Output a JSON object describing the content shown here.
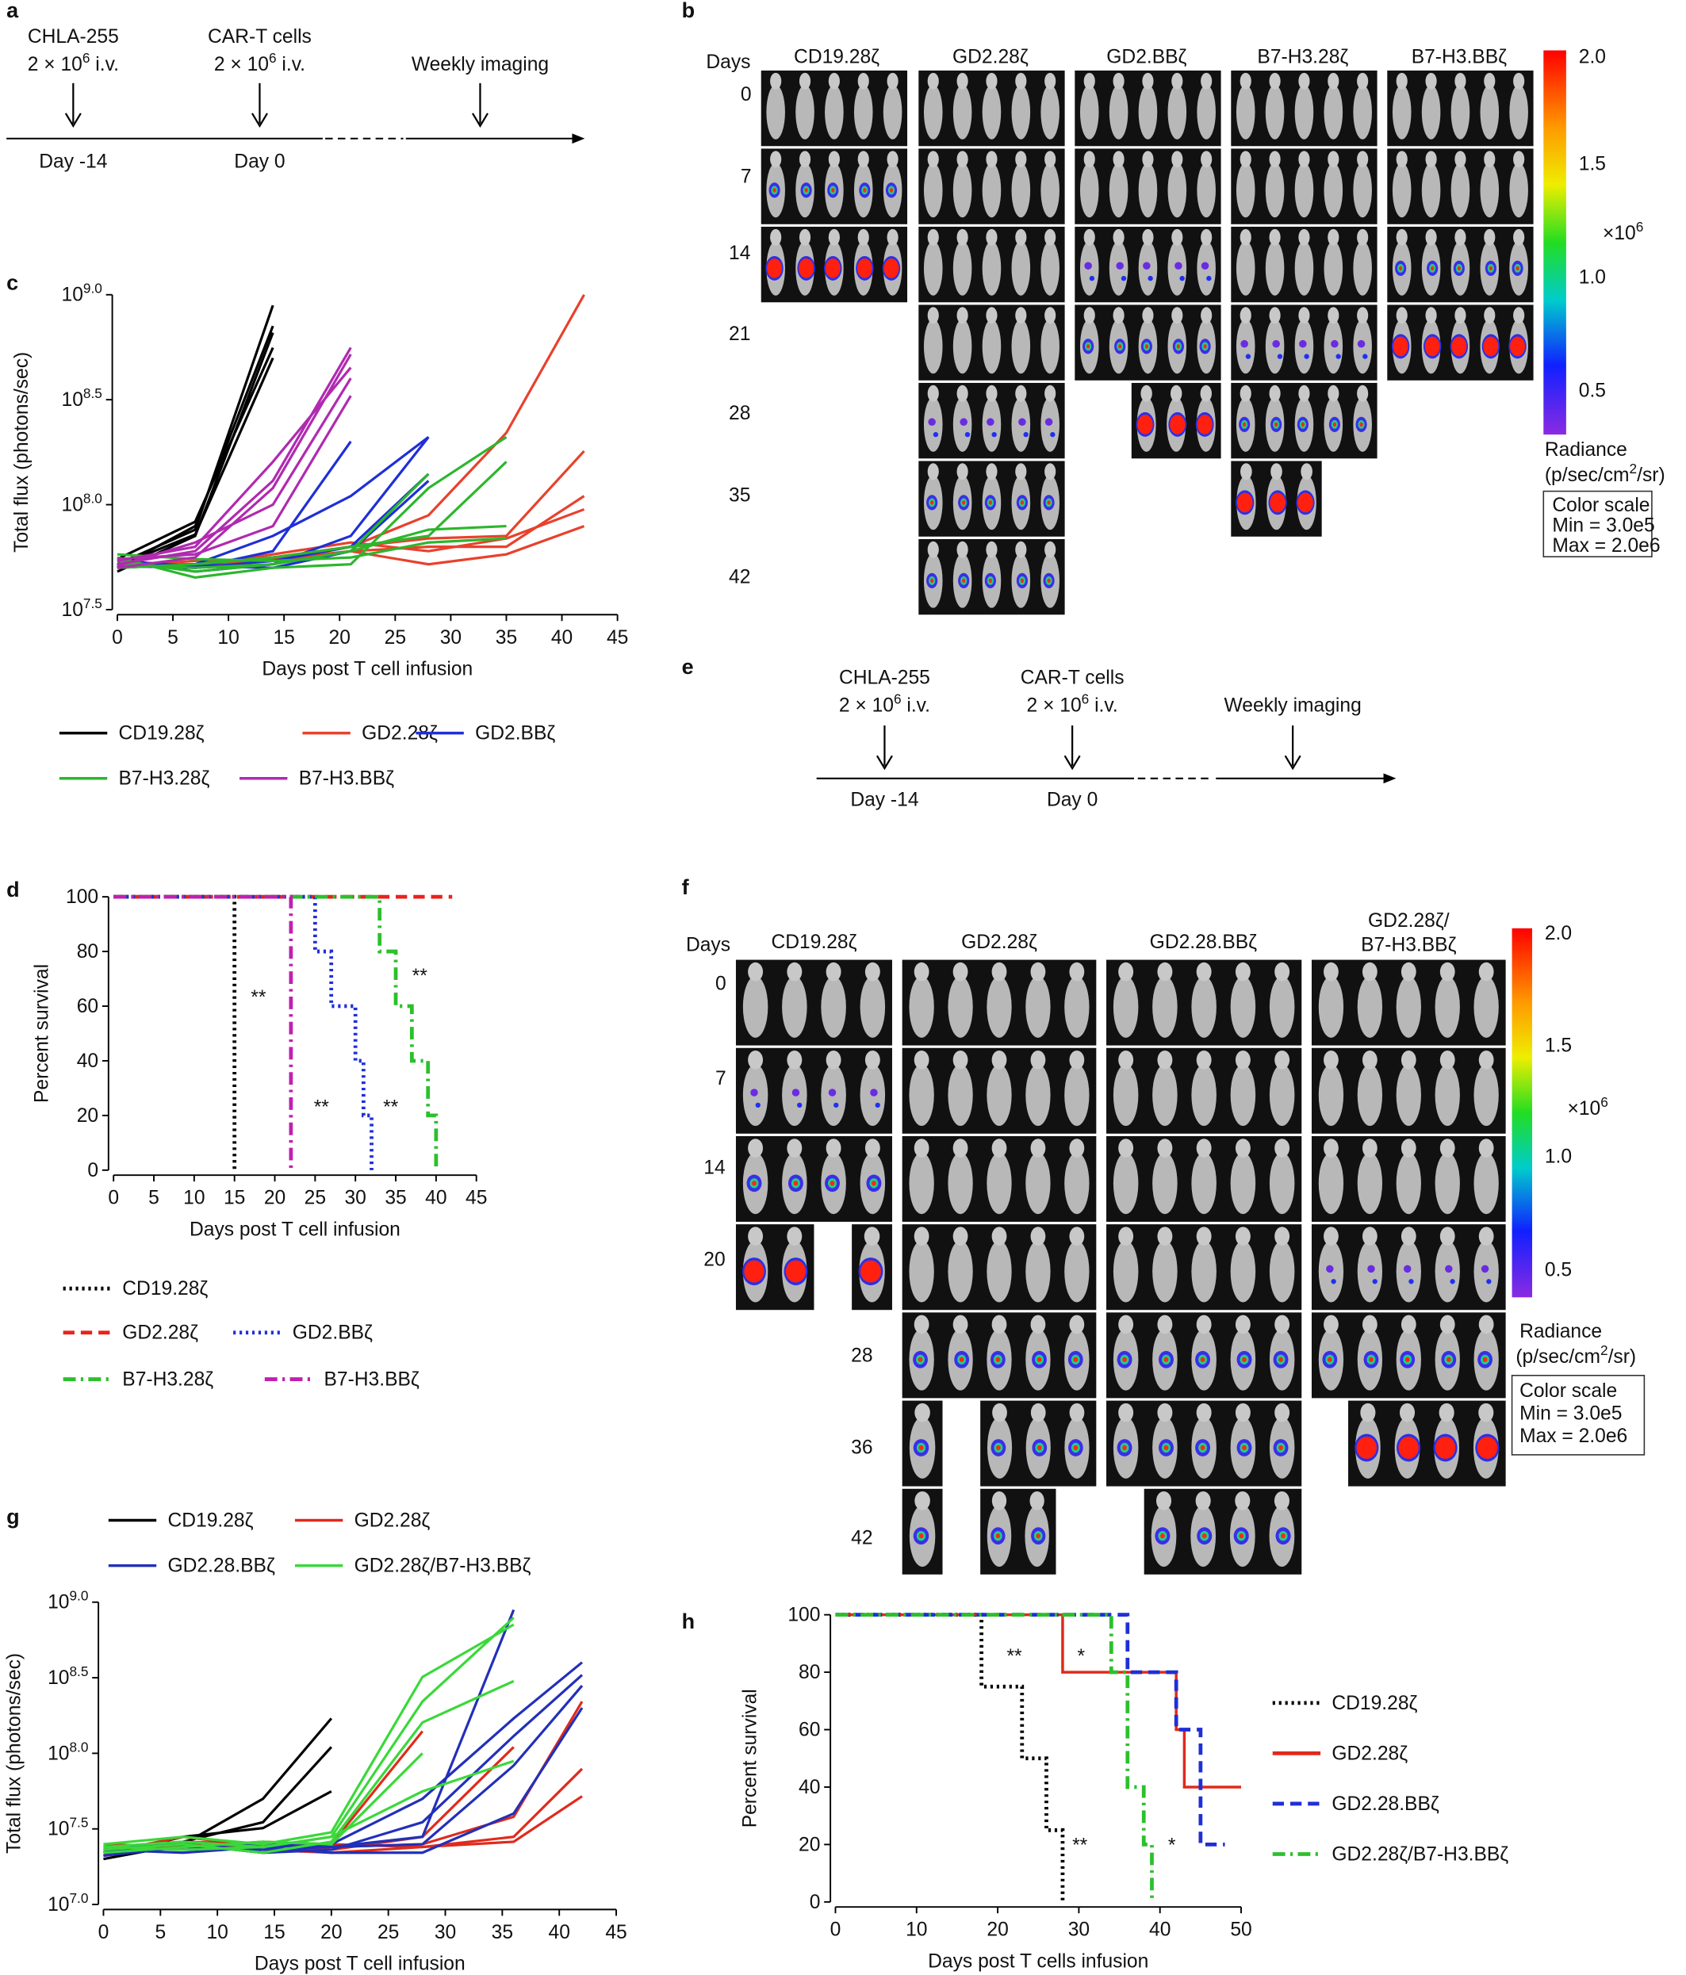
{
  "panel_labels": [
    "a",
    "b",
    "c",
    "d",
    "e",
    "f",
    "g",
    "h"
  ],
  "timelines": [
    {
      "events": [
        {
          "label": "CHLA-255",
          "dose": "2 × 10^6 i.v.",
          "day": "Day -14"
        },
        {
          "label": "CAR-T cells",
          "dose": "2 × 10^6 i.v.",
          "day": "Day 0"
        },
        {
          "label": "Weekly imaging"
        }
      ]
    },
    {
      "events": [
        {
          "label": "CHLA-255",
          "dose": "2 × 10^6 i.v.",
          "day": "Day -14"
        },
        {
          "label": "CAR-T cells",
          "dose": "2 × 10^6 i.v.",
          "day": "Day 0"
        },
        {
          "label": "Weekly imaging"
        }
      ]
    }
  ],
  "imaging": [
    {
      "days_title": "Days",
      "days": [
        "0",
        "7",
        "14",
        "21",
        "28",
        "35",
        "42"
      ],
      "groups": [
        [
          "CD19.28ζ"
        ],
        [
          "GD2.28ζ"
        ],
        [
          "GD2.BBζ"
        ],
        [
          "B7-H3.28ζ"
        ],
        [
          "B7-H3.BBζ"
        ]
      ],
      "colorbar": {
        "ticks": [
          "2.0",
          "1.5",
          "1.0",
          "0.5"
        ],
        "multiplier": "×10^6",
        "title": "Radiance",
        "unit": "(p/sec/cm^2/sr)",
        "scale_box": [
          "Color scale",
          "Min = 3.0e5",
          "Max = 2.0e6"
        ]
      }
    },
    {
      "days_title": "Days",
      "days": [
        "0",
        "7",
        "14",
        "20",
        "28",
        "36",
        "42"
      ],
      "groups": [
        [
          "CD19.28ζ"
        ],
        [
          "GD2.28ζ"
        ],
        [
          "GD2.28.BBζ"
        ],
        [
          "GD2.28ζ/",
          "B7-H3.BBζ"
        ]
      ],
      "colorbar": {
        "ticks": [
          "2.0",
          "1.5",
          "1.0",
          "0.5"
        ],
        "multiplier": "×10^6",
        "title": "Radiance",
        "unit": "(p/sec/cm^2/sr)",
        "scale_box": [
          "Color scale",
          "Min = 3.0e5",
          "Max = 2.0e6"
        ]
      }
    }
  ],
  "chart_data": [
    {
      "type": "line",
      "log_scale": true,
      "x_label": "Days post T cell infusion",
      "y_label": "Total flux (photons/sec)",
      "xlim": [
        0,
        45
      ],
      "xticks": [
        0,
        5,
        10,
        15,
        20,
        25,
        30,
        35,
        40,
        45
      ],
      "ylim": [
        31622777,
        1000000000
      ],
      "yticks": [
        {
          "value": 31622777,
          "label": "10^7.5"
        },
        {
          "value": 100000000,
          "label": "10^8.0"
        },
        {
          "value": 316227766,
          "label": "10^8.5"
        },
        {
          "value": 1000000000,
          "label": "10^9.0"
        }
      ],
      "series": [
        {
          "name": "CD19.28ζ",
          "color": "#000000",
          "style": "solid",
          "x": [
            0,
            7,
            14
          ],
          "values": [
            [
              52000000.0,
              76000000.0,
              890000000.0
            ],
            [
              50000000.0,
              79000000.0,
              710000000.0
            ],
            [
              48000000.0,
              71000000.0,
              660000000.0
            ],
            [
              55000000.0,
              83000000.0,
              560000000.0
            ],
            [
              51000000.0,
              72000000.0,
              500000000.0
            ]
          ]
        },
        {
          "name": "GD2.28ζ",
          "color": "#e8412c",
          "style": "solid",
          "x": [
            0,
            7,
            14,
            21,
            28,
            35,
            42
          ],
          "values": [
            [
              52000000.0,
              52000000.0,
              56000000.0,
              63000000.0,
              89000000.0,
              220000000.0,
              1000000000.0
            ],
            [
              50000000.0,
              52000000.0,
              56000000.0,
              63000000.0,
              69000000.0,
              71000000.0,
              180000000.0
            ],
            [
              51000000.0,
              54000000.0,
              55000000.0,
              60000000.0,
              63000000.0,
              63000000.0,
              110000000.0
            ],
            [
              54000000.0,
              51000000.0,
              58000000.0,
              66000000.0,
              60000000.0,
              69000000.0,
              95000000.0
            ],
            [
              52000000.0,
              52000000.0,
              54000000.0,
              60000000.0,
              52000000.0,
              58000000.0,
              79000000.0
            ]
          ]
        },
        {
          "name": "GD2.BBζ",
          "color": "#1f2fd6",
          "style": "solid",
          "x": [
            0,
            7,
            14,
            21,
            28
          ],
          "values": [
            [
              52000000.0,
              50000000.0,
              60000000.0,
              200000000.0,
              null
            ],
            [
              50000000.0,
              52000000.0,
              71000000.0,
              110000000.0,
              210000000.0
            ],
            [
              55000000.0,
              48000000.0,
              52000000.0,
              71000000.0,
              210000000.0
            ],
            [
              51000000.0,
              50000000.0,
              54000000.0,
              63000000.0,
              140000000.0
            ],
            [
              54000000.0,
              51000000.0,
              50000000.0,
              60000000.0,
              130000000.0
            ]
          ]
        },
        {
          "name": "B7-H3.28ζ",
          "color": "#2cb62c",
          "style": "solid",
          "x": [
            0,
            7,
            14,
            21,
            28,
            35
          ],
          "values": [
            [
              54000000.0,
              48000000.0,
              52000000.0,
              60000000.0,
              140000000.0,
              null
            ],
            [
              56000000.0,
              45000000.0,
              50000000.0,
              52000000.0,
              120000000.0,
              210000000.0
            ],
            [
              50000000.0,
              52000000.0,
              56000000.0,
              63000000.0,
              71000000.0,
              160000000.0
            ],
            [
              52000000.0,
              50000000.0,
              52000000.0,
              60000000.0,
              76000000.0,
              79000000.0
            ],
            [
              58000000.0,
              55000000.0,
              54000000.0,
              56000000.0,
              66000000.0,
              69000000.0
            ]
          ]
        },
        {
          "name": "B7-H3.BBζ",
          "color": "#b02ab0",
          "style": "solid",
          "x": [
            0,
            7,
            14,
            21
          ],
          "values": [
            [
              52000000.0,
              60000000.0,
              130000000.0,
              560000000.0
            ],
            [
              50000000.0,
              56000000.0,
              120000000.0,
              520000000.0
            ],
            [
              54000000.0,
              63000000.0,
              160000000.0,
              450000000.0
            ],
            [
              51000000.0,
              66000000.0,
              100000000.0,
              400000000.0
            ],
            [
              55000000.0,
              58000000.0,
              79000000.0,
              330000000.0
            ]
          ]
        }
      ]
    },
    {
      "type": "survival",
      "x_label": "Days post T cell infusion",
      "y_label": "Percent survival",
      "xlim": [
        0,
        45
      ],
      "xticks": [
        0,
        5,
        10,
        15,
        20,
        25,
        30,
        35,
        40,
        45
      ],
      "ylim": [
        0,
        100
      ],
      "yticks": [
        0,
        20,
        40,
        60,
        80,
        100
      ],
      "annotations": [
        "**",
        "**",
        "**",
        "**"
      ],
      "series": [
        {
          "name": "CD19.28ζ",
          "color": "#000000",
          "style": "dotted",
          "x": [
            0,
            15
          ],
          "values": [
            100,
            0
          ]
        },
        {
          "name": "GD2.28ζ",
          "color": "#e8231c",
          "style": "dashed",
          "x": [
            0,
            42
          ],
          "values": [
            100,
            100
          ]
        },
        {
          "name": "GD2.BBζ",
          "color": "#1f2fd6",
          "style": "dotted",
          "x": [
            0,
            25,
            27,
            30,
            31,
            32
          ],
          "values": [
            100,
            80,
            60,
            40,
            20,
            0
          ]
        },
        {
          "name": "B7-H3.28ζ",
          "color": "#2cc02c",
          "style": "dashdot",
          "x": [
            0,
            33,
            35,
            37,
            39,
            40
          ],
          "values": [
            100,
            80,
            60,
            40,
            20,
            0
          ]
        },
        {
          "name": "B7-H3.BBζ",
          "color": "#c020b0",
          "style": "dashdot",
          "x": [
            0,
            22
          ],
          "values": [
            100,
            0
          ]
        }
      ]
    },
    {
      "type": "line",
      "log_scale": true,
      "x_label": "Days post T cell infusion",
      "y_label": "Total flux (photons/sec)",
      "xlim": [
        0,
        45
      ],
      "xticks": [
        0,
        5,
        10,
        15,
        20,
        25,
        30,
        35,
        40,
        45
      ],
      "ylim": [
        10000000,
        1000000000
      ],
      "yticks": [
        {
          "value": 10000000,
          "label": "10^7.0"
        },
        {
          "value": 31622777,
          "label": "10^7.5"
        },
        {
          "value": 100000000,
          "label": "10^8.0"
        },
        {
          "value": 316227766,
          "label": "10^8.5"
        },
        {
          "value": 1000000000,
          "label": "10^9.0"
        }
      ],
      "series": [
        {
          "name": "CD19.28ζ",
          "color": "#000000",
          "style": "solid",
          "x": [
            0,
            7,
            14,
            20
          ],
          "values": [
            [
              20000000.0,
              25000000.0,
              50000000.0,
              170000000.0
            ],
            [
              22000000.0,
              26000000.0,
              35000000.0,
              110000000.0
            ],
            [
              21000000.0,
              28000000.0,
              32000000.0,
              56000000.0
            ]
          ]
        },
        {
          "name": "GD2.28ζ",
          "color": "#e02a1c",
          "style": "solid",
          "x": [
            0,
            7,
            14,
            20,
            28,
            36,
            42
          ],
          "values": [
            [
              22000000.0,
              28000000.0,
              24000000.0,
              25000000.0,
              140000000.0,
              null,
              null
            ],
            [
              24000000.0,
              26000000.0,
              25000000.0,
              23000000.0,
              28000000.0,
              110000000.0,
              null
            ],
            [
              23000000.0,
              25000000.0,
              22000000.0,
              24000000.0,
              25000000.0,
              38000000.0,
              220000000.0
            ],
            [
              25000000.0,
              24000000.0,
              26000000.0,
              25000000.0,
              24000000.0,
              28000000.0,
              79000000.0
            ],
            [
              21000000.0,
              25000000.0,
              23000000.0,
              22000000.0,
              24000000.0,
              26000000.0,
              52000000.0
            ]
          ]
        },
        {
          "name": "GD2.28.BBζ",
          "color": "#2230b8",
          "style": "solid",
          "x": [
            0,
            7,
            14,
            20,
            28,
            36,
            42
          ],
          "values": [
            [
              22000000.0,
              24000000.0,
              25000000.0,
              24000000.0,
              28000000.0,
              890000000.0,
              null
            ],
            [
              23000000.0,
              26000000.0,
              24000000.0,
              25000000.0,
              50000000.0,
              170000000.0,
              400000000.0
            ],
            [
              24000000.0,
              25000000.0,
              22000000.0,
              23000000.0,
              35000000.0,
              130000000.0,
              330000000.0
            ],
            [
              21000000.0,
              24000000.0,
              23000000.0,
              24000000.0,
              25000000.0,
              83000000.0,
              280000000.0
            ],
            [
              23000000.0,
              22000000.0,
              24000000.0,
              22000000.0,
              22000000.0,
              40000000.0,
              200000000.0
            ]
          ]
        },
        {
          "name": "GD2.28ζ/B7-H3.BBζ",
          "color": "#3ad83a",
          "style": "solid",
          "x": [
            0,
            7,
            14,
            20,
            28,
            36
          ],
          "values": [
            [
              24000000.0,
              26000000.0,
              24000000.0,
              28000000.0,
              220000000.0,
              790000000.0
            ],
            [
              25000000.0,
              28000000.0,
              25000000.0,
              30000000.0,
              320000000.0,
              710000000.0
            ],
            [
              23000000.0,
              25000000.0,
              22000000.0,
              26000000.0,
              160000000.0,
              300000000.0
            ],
            [
              22000000.0,
              24000000.0,
              26000000.0,
              25000000.0,
              100000000.0,
              null
            ],
            [
              24000000.0,
              23000000.0,
              24000000.0,
              28000000.0,
              56000000.0,
              89000000.0
            ]
          ]
        }
      ]
    },
    {
      "type": "survival",
      "x_label": "Days post T cells infusion",
      "y_label": "Percent survival",
      "xlim": [
        0,
        50
      ],
      "xticks": [
        0,
        10,
        20,
        30,
        40,
        50
      ],
      "ylim": [
        0,
        100
      ],
      "yticks": [
        0,
        20,
        40,
        60,
        80,
        100
      ],
      "annotations": [
        "**",
        "*",
        "**",
        "*"
      ],
      "series": [
        {
          "name": "CD19.28ζ",
          "color": "#000000",
          "style": "dotted",
          "x": [
            0,
            18,
            23,
            26,
            28
          ],
          "values": [
            100,
            75,
            50,
            25,
            0
          ]
        },
        {
          "name": "GD2.28ζ",
          "color": "#e02a1c",
          "style": "solid",
          "x": [
            0,
            28,
            42,
            43,
            50
          ],
          "values": [
            100,
            80,
            60,
            40,
            40
          ]
        },
        {
          "name": "GD2.28.BBζ",
          "color": "#1f2fd6",
          "style": "dashed",
          "x": [
            0,
            36,
            42,
            45,
            48
          ],
          "values": [
            100,
            80,
            60,
            20,
            20
          ]
        },
        {
          "name": "GD2.28ζ/B7-H3.BBζ",
          "color": "#2cc02c",
          "style": "dashdot",
          "x": [
            0,
            34,
            36,
            38,
            39
          ],
          "values": [
            100,
            80,
            40,
            20,
            0
          ]
        }
      ]
    }
  ]
}
